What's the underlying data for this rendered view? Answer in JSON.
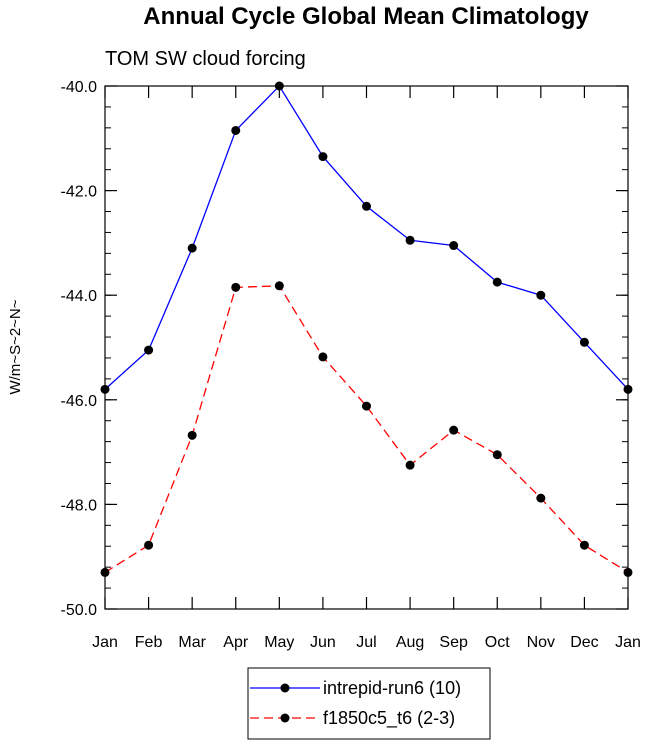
{
  "chart_data": {
    "type": "line",
    "title": "Annual Cycle Global Mean Climatology",
    "subtitle": "TOM SW cloud forcing",
    "xlabel": "",
    "ylabel": "W/m~S~2~N~",
    "categories": [
      "Jan",
      "Feb",
      "Mar",
      "Apr",
      "May",
      "Jun",
      "Jul",
      "Aug",
      "Sep",
      "Oct",
      "Nov",
      "Dec",
      "Jan"
    ],
    "ylim": [
      -50.0,
      -40.0
    ],
    "yticks": [
      -40.0,
      -42.0,
      -44.0,
      -46.0,
      -48.0,
      -50.0
    ],
    "ytick_labels": [
      "-40.0",
      "-42.0",
      "-44.0",
      "-46.0",
      "-48.0",
      "-50.0"
    ],
    "grid": false,
    "legend_position": "bottom-center",
    "series": [
      {
        "name": "intrepid-run6 (10)",
        "color": "#0000ff",
        "dash": "solid",
        "values": [
          -45.8,
          -45.05,
          -43.1,
          -40.85,
          -40.0,
          -41.35,
          -42.3,
          -42.95,
          -43.05,
          -43.75,
          -44.0,
          -44.9,
          -45.8
        ]
      },
      {
        "name": "f1850c5_t6 (2-3)",
        "color": "#ff0000",
        "dash": "dashed",
        "values": [
          -49.3,
          -48.78,
          -46.68,
          -43.85,
          -43.82,
          -45.18,
          -46.12,
          -47.25,
          -46.58,
          -47.05,
          -47.88,
          -48.78,
          -49.3
        ]
      }
    ]
  }
}
